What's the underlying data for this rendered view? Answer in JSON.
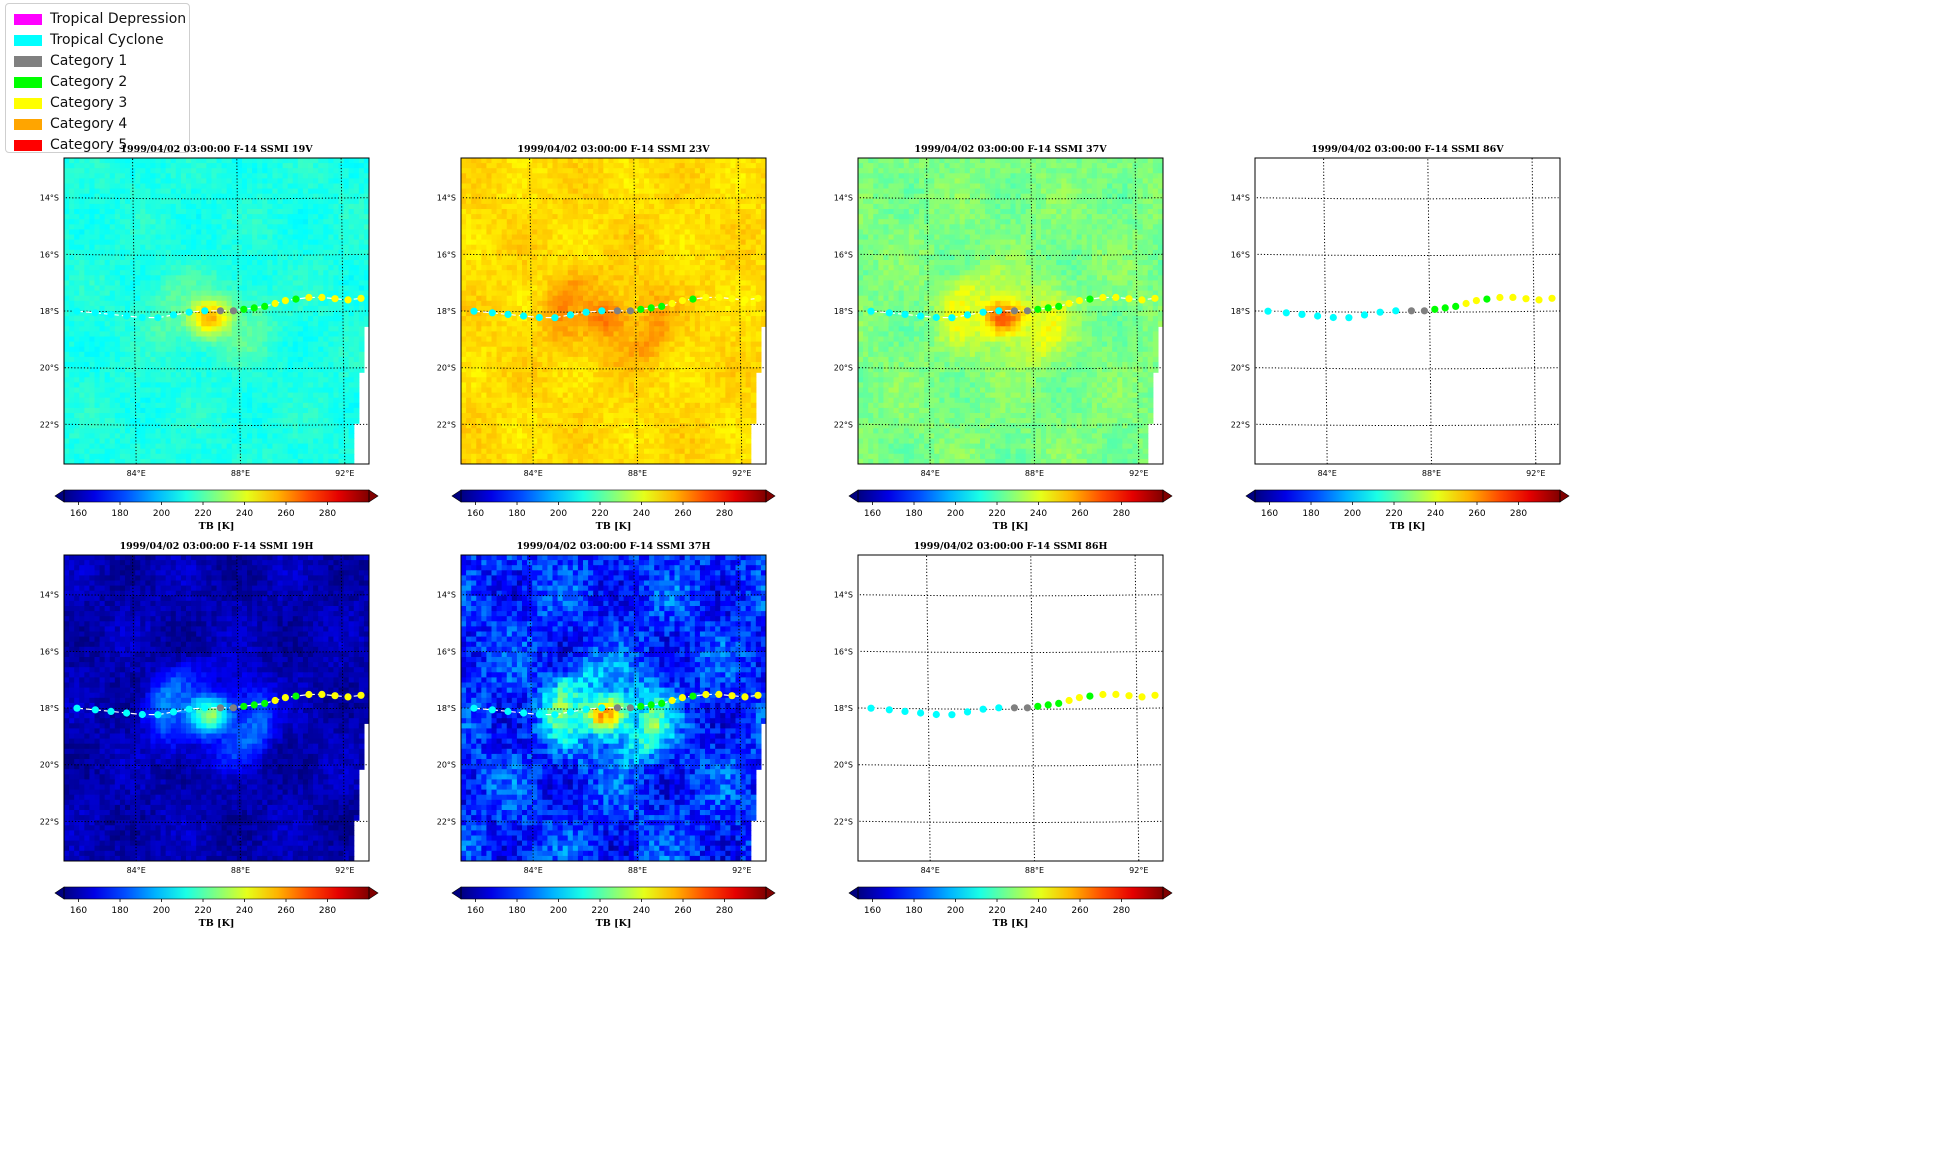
{
  "legend": {
    "items": [
      {
        "label": "Tropical Depression",
        "color": "#ff00ff"
      },
      {
        "label": "Tropical Cyclone",
        "color": "#00ffff"
      },
      {
        "label": "Category 1",
        "color": "#808080"
      },
      {
        "label": "Category 2",
        "color": "#00ff00"
      },
      {
        "label": "Category 3",
        "color": "#ffff00"
      },
      {
        "label": "Category 4",
        "color": "#ffa500"
      },
      {
        "label": "Category 5",
        "color": "#ff0000"
      }
    ]
  },
  "chart_data": {
    "type": "heatmap",
    "lon_ticks": [
      "84°E",
      "88°E",
      "92°E"
    ],
    "lat_ticks": [
      "14°S",
      "16°S",
      "18°S",
      "20°S",
      "22°S"
    ],
    "lon_range": [
      81.3,
      93.0
    ],
    "lat_range": [
      -23.4,
      -12.6
    ],
    "colorbar": {
      "label": "TB [K]",
      "ticks": [
        "160",
        "180",
        "200",
        "220",
        "240",
        "260",
        "280"
      ],
      "range": [
        153,
        300
      ],
      "colormap": "jet"
    },
    "track": [
      {
        "lon": 81.8,
        "lat": -18.0,
        "cat": "Tropical Cyclone"
      },
      {
        "lon": 82.5,
        "lat": -18.05,
        "cat": "Tropical Cyclone"
      },
      {
        "lon": 83.1,
        "lat": -18.1,
        "cat": "Tropical Cyclone"
      },
      {
        "lon": 83.7,
        "lat": -18.15,
        "cat": "Tropical Cyclone"
      },
      {
        "lon": 84.3,
        "lat": -18.2,
        "cat": "Tropical Cyclone"
      },
      {
        "lon": 84.9,
        "lat": -18.2,
        "cat": "Tropical Cyclone"
      },
      {
        "lon": 85.5,
        "lat": -18.1,
        "cat": "Tropical Cyclone"
      },
      {
        "lon": 86.1,
        "lat": -18.0,
        "cat": "Tropical Cyclone"
      },
      {
        "lon": 86.7,
        "lat": -17.95,
        "cat": "Tropical Cyclone"
      },
      {
        "lon": 87.3,
        "lat": -17.95,
        "cat": "Category 1"
      },
      {
        "lon": 87.8,
        "lat": -17.95,
        "cat": "Category 1"
      },
      {
        "lon": 88.2,
        "lat": -17.9,
        "cat": "Category 2"
      },
      {
        "lon": 88.6,
        "lat": -17.85,
        "cat": "Category 2"
      },
      {
        "lon": 89.0,
        "lat": -17.8,
        "cat": "Category 2"
      },
      {
        "lon": 89.4,
        "lat": -17.7,
        "cat": "Category 3"
      },
      {
        "lon": 89.8,
        "lat": -17.6,
        "cat": "Category 3"
      },
      {
        "lon": 90.2,
        "lat": -17.55,
        "cat": "Category 2"
      },
      {
        "lon": 90.7,
        "lat": -17.5,
        "cat": "Category 3"
      },
      {
        "lon": 91.2,
        "lat": -17.5,
        "cat": "Category 3"
      },
      {
        "lon": 91.7,
        "lat": -17.55,
        "cat": "Category 3"
      },
      {
        "lon": 92.2,
        "lat": -17.6,
        "cat": "Category 3"
      },
      {
        "lon": 92.7,
        "lat": -17.55,
        "cat": "Category 3"
      }
    ],
    "panels": [
      {
        "title": "1999/04/02 03:00:00  F-14 SSMI 19V",
        "channel": "19V",
        "base": 212,
        "inner": 255,
        "inner_amp": 45,
        "ring_amp": 8,
        "swath": true,
        "noise": 3
      },
      {
        "title": "1999/04/02 03:00:00  F-14 SSMI 23V",
        "channel": "23V",
        "base": 250,
        "inner": 268,
        "inner_amp": 16,
        "ring_amp": 10,
        "swath": true,
        "noise": 3
      },
      {
        "title": "1999/04/02 03:00:00  F-14 SSMI 37V",
        "channel": "37V",
        "base": 226,
        "inner": 270,
        "inner_amp": 46,
        "ring_amp": 16,
        "swath": true,
        "noise": 4
      },
      {
        "title": "1999/04/02 03:00:00  F-14 SSMI 86V",
        "channel": "86V",
        "base": null,
        "swath": false
      },
      {
        "title": "1999/04/02 03:00:00  F-14 SSMI 19H",
        "channel": "19H",
        "base": 160,
        "inner": 230,
        "inner_amp": 70,
        "ring_amp": 28,
        "swath": true,
        "noise": 5
      },
      {
        "title": "1999/04/02 03:00:00  F-14 SSMI 37H",
        "channel": "37H",
        "base": 178,
        "inner": 270,
        "inner_amp": 90,
        "ring_amp": 40,
        "swath": true,
        "noise": 12
      },
      {
        "title": "1999/04/02 03:00:00  F-14 SSMI 86H",
        "channel": "86H",
        "base": null,
        "swath": false
      }
    ]
  }
}
